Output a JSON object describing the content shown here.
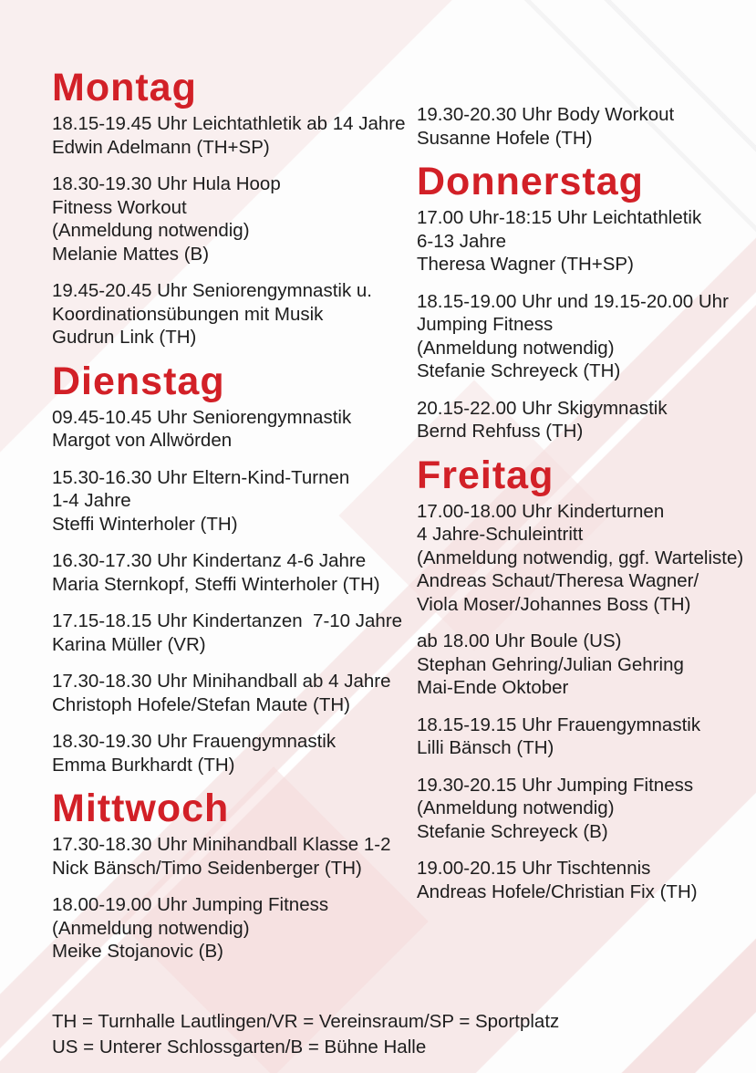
{
  "page": {
    "heading_color": "#d22027",
    "text_color": "#1d1d1d",
    "background_pink": "#f7e9e9",
    "shape_white": "#fdfdfd"
  },
  "columns": [
    {
      "name": "left",
      "blocks": [
        {
          "type": "heading",
          "text": "Montag"
        },
        {
          "type": "entry",
          "lines": [
            "18.15-19.45 Uhr Leichtathletik ab 14 Jahre",
            "Edwin Adelmann (TH+SP)"
          ]
        },
        {
          "type": "entry",
          "lines": [
            "18.30-19.30 Uhr Hula Hoop",
            "Fitness Workout",
            "(Anmeldung notwendig)",
            "Melanie Mattes (B)"
          ]
        },
        {
          "type": "entry",
          "lines": [
            "19.45-20.45 Uhr Seniorengymnastik u.",
            "Koordinationsübungen mit Musik",
            "Gudrun Link (TH)"
          ]
        },
        {
          "type": "heading",
          "text": "Dienstag"
        },
        {
          "type": "entry",
          "lines": [
            "09.45-10.45 Uhr Seniorengymnastik",
            "Margot von Allwörden"
          ]
        },
        {
          "type": "entry",
          "lines": [
            "15.30-16.30 Uhr Eltern-Kind-Turnen",
            "1-4 Jahre",
            "Steffi Winterholer (TH)"
          ]
        },
        {
          "type": "entry",
          "lines": [
            "16.30-17.30 Uhr Kindertanz 4-6 Jahre",
            "Maria Sternkopf, Steffi Winterholer (TH)"
          ]
        },
        {
          "type": "entry",
          "lines": [
            "17.15-18.15 Uhr Kindertanzen  7-10 Jahre",
            "Karina Müller (VR)"
          ]
        },
        {
          "type": "entry",
          "lines": [
            "17.30-18.30 Uhr Minihandball ab 4 Jahre",
            "Christoph Hofele/Stefan Maute (TH)"
          ]
        },
        {
          "type": "entry",
          "lines": [
            "18.30-19.30 Uhr Frauengymnastik",
            "Emma Burkhardt (TH)"
          ]
        },
        {
          "type": "heading",
          "text": "Mittwoch"
        },
        {
          "type": "entry",
          "lines": [
            "17.30-18.30 Uhr Minihandball Klasse 1-2",
            "Nick Bänsch/Timo Seidenberger (TH)"
          ]
        },
        {
          "type": "entry",
          "lines": [
            "18.00-19.00 Uhr Jumping Fitness",
            "(Anmeldung notwendig)",
            "Meike Stojanovic (B)"
          ]
        }
      ]
    },
    {
      "name": "right",
      "blocks": [
        {
          "type": "entry",
          "lines": [
            "19.30-20.30 Uhr Body Workout",
            "Susanne Hofele (TH)"
          ]
        },
        {
          "type": "heading",
          "text": "Donnerstag"
        },
        {
          "type": "entry",
          "lines": [
            "17.00 Uhr-18:15 Uhr Leichtathletik",
            "6-13 Jahre",
            "Theresa Wagner (TH+SP)"
          ]
        },
        {
          "type": "entry",
          "lines": [
            "18.15-19.00 Uhr und 19.15-20.00 Uhr",
            "Jumping Fitness",
            "(Anmeldung notwendig)",
            "Stefanie Schreyeck (TH)"
          ]
        },
        {
          "type": "entry",
          "lines": [
            "20.15-22.00 Uhr Skigymnastik",
            "Bernd Rehfuss (TH)"
          ]
        },
        {
          "type": "heading",
          "text": "Freitag"
        },
        {
          "type": "entry",
          "lines": [
            "17.00-18.00 Uhr Kinderturnen",
            "4 Jahre-Schuleintritt",
            "(Anmeldung notwendig, ggf. Warteliste)",
            "Andreas Schaut/Theresa Wagner/",
            "Viola Moser/Johannes Boss (TH)"
          ]
        },
        {
          "type": "entry",
          "lines": [
            "ab 18.00 Uhr Boule (US)",
            "Stephan Gehring/Julian Gehring",
            "Mai-Ende Oktober"
          ]
        },
        {
          "type": "entry",
          "lines": [
            "18.15-19.15 Uhr Frauengymnastik",
            "Lilli Bänsch (TH)"
          ]
        },
        {
          "type": "entry",
          "lines": [
            "19.30-20.15 Uhr Jumping Fitness",
            "(Anmeldung notwendig)",
            "Stefanie Schreyeck (B)"
          ]
        },
        {
          "type": "entry",
          "lines": [
            "19.00-20.15 Uhr Tischtennis",
            "Andreas Hofele/Christian Fix (TH)"
          ]
        }
      ]
    }
  ],
  "legend": {
    "line1": "TH = Turnhalle Lautlingen/VR = Vereinsraum/SP = Sportplatz",
    "line2": "US = Unterer Schlossgarten/B = Bühne Halle"
  }
}
